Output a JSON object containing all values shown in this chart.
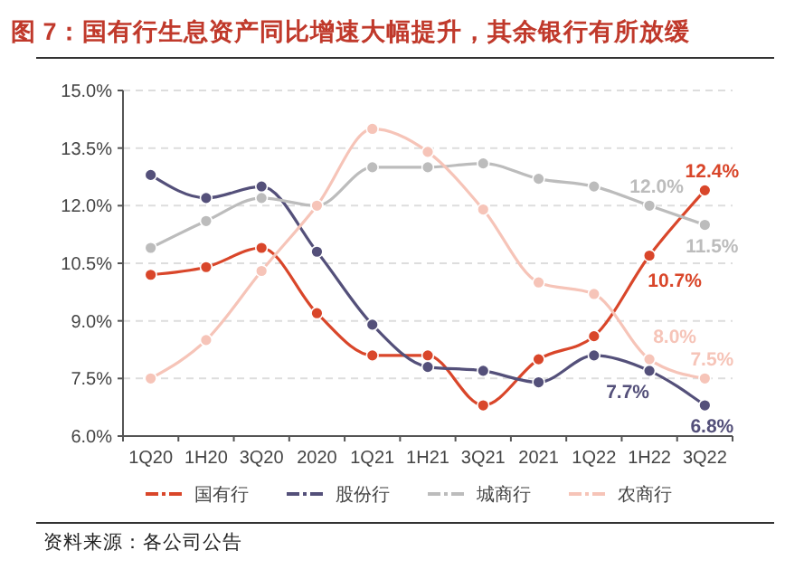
{
  "chart_data": {
    "type": "line",
    "title": "图 7：国有行生息资产同比增速大幅提升，其余银行有所放缓",
    "categories": [
      "1Q20",
      "1H20",
      "3Q20",
      "2020",
      "1Q21",
      "1H21",
      "3Q21",
      "2021",
      "1Q22",
      "1H22",
      "3Q22"
    ],
    "series": [
      {
        "name": "国有行",
        "color": "#d9462a",
        "values": [
          10.2,
          10.4,
          10.9,
          9.2,
          8.1,
          8.1,
          6.8,
          8.0,
          8.6,
          10.7,
          12.4
        ],
        "value_labels": [
          null,
          null,
          null,
          null,
          null,
          null,
          null,
          null,
          null,
          "10.7%",
          "12.4%"
        ]
      },
      {
        "name": "股份行",
        "color": "#54507a",
        "values": [
          12.8,
          12.2,
          12.5,
          10.8,
          8.9,
          7.8,
          7.7,
          7.4,
          8.1,
          7.7,
          6.8
        ],
        "value_labels": [
          null,
          null,
          null,
          null,
          null,
          null,
          null,
          null,
          null,
          "7.7%",
          "6.8%"
        ]
      },
      {
        "name": "城商行",
        "color": "#bcbcbc",
        "values": [
          10.9,
          11.6,
          12.2,
          12.0,
          13.0,
          13.0,
          13.1,
          12.7,
          12.5,
          12.0,
          11.5
        ],
        "value_labels": [
          null,
          null,
          null,
          null,
          null,
          null,
          null,
          null,
          null,
          "12.0%",
          "11.5%"
        ]
      },
      {
        "name": "农商行",
        "color": "#f6c4b8",
        "values": [
          7.5,
          8.5,
          10.3,
          12.0,
          14.0,
          13.4,
          11.9,
          10.0,
          9.7,
          8.0,
          7.5
        ],
        "value_labels": [
          null,
          null,
          null,
          null,
          null,
          null,
          null,
          null,
          null,
          "8.0%",
          "7.5%"
        ]
      }
    ],
    "ylim": [
      6,
      15
    ],
    "yticks": [
      {
        "value": 6,
        "label": "6.0%"
      },
      {
        "value": 7.5,
        "label": "7.5%"
      },
      {
        "value": 9,
        "label": "9.0%"
      },
      {
        "value": 10.5,
        "label": "10.5%"
      },
      {
        "value": 12,
        "label": "12.0%"
      },
      {
        "value": 13.5,
        "label": "13.5%"
      },
      {
        "value": 15,
        "label": "15.0%"
      }
    ],
    "grid": "y",
    "legend": "bottom",
    "marker": "circle",
    "line_style": "solid",
    "annotations": [
      "资料来源：各公司公告"
    ]
  }
}
